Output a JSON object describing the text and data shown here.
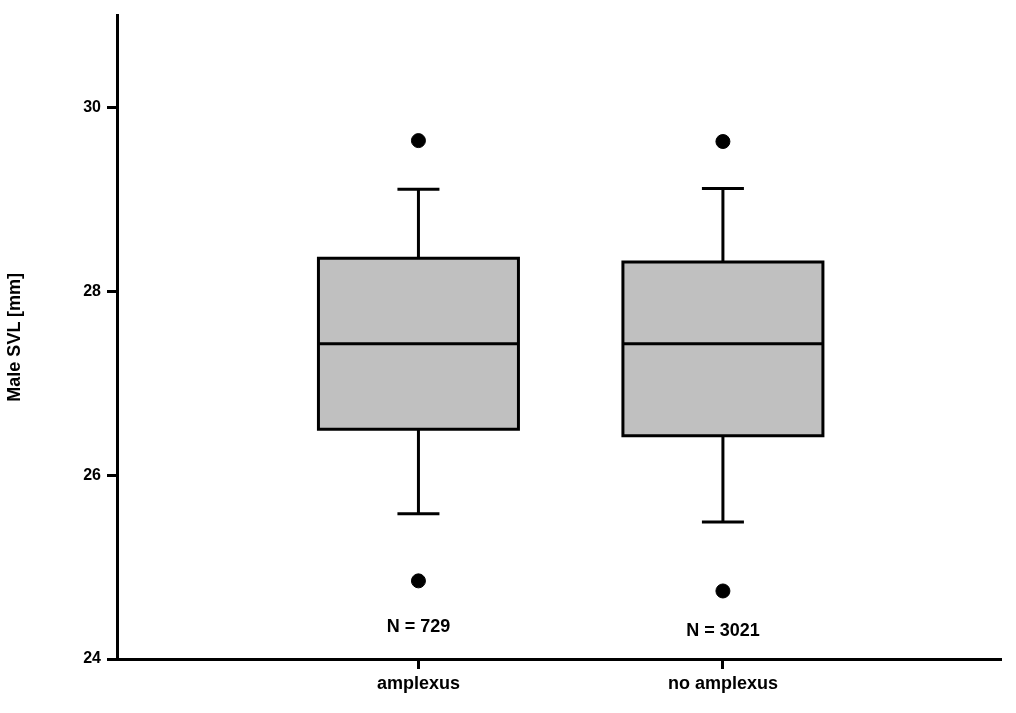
{
  "chart_data": {
    "type": "box",
    "ylabel": "Male SVL [mm]",
    "categories": [
      "amplexus",
      "no amplexus"
    ],
    "boxes": [
      {
        "low": 25.58,
        "q1": 26.5,
        "median": 27.43,
        "q3": 28.36,
        "high": 29.11,
        "outliers": [
          29.64,
          24.85
        ]
      },
      {
        "low": 25.49,
        "q1": 26.43,
        "median": 27.43,
        "q3": 28.32,
        "high": 29.12,
        "outliers": [
          29.63,
          24.74
        ]
      }
    ],
    "color": "#c0c0c0",
    "ylim": [
      24,
      31
    ],
    "yticks": [
      24,
      26,
      28,
      30
    ],
    "grid": false,
    "legend": false,
    "annotations": [
      "N = 729",
      "N = 3021"
    ]
  }
}
